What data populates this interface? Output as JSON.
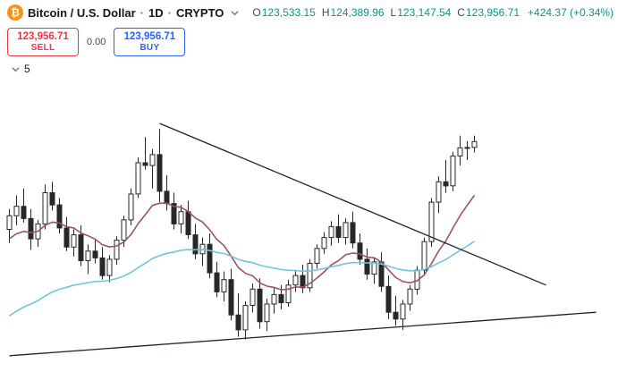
{
  "header": {
    "symbol_title": "Bitcoin / U.S. Dollar",
    "separator": "·",
    "interval": "1D",
    "exchange": "CRYPTO",
    "btc_glyph": "₿",
    "ohlc": {
      "o_label": "O",
      "o": "123,533.15",
      "h_label": "H",
      "h": "124,389.96",
      "l_label": "L",
      "l": "123,147.54",
      "c_label": "C",
      "c": "123,956.71",
      "change": "+424.37 (+0.34%)"
    }
  },
  "trade_panel": {
    "sell": {
      "price": "123,956.71",
      "label": "SELL"
    },
    "spread": "0.00",
    "buy": {
      "price": "123,956.71",
      "label": "BUY"
    }
  },
  "toolbar": {
    "indicator_count": "5"
  },
  "colors": {
    "up_value": "#089981",
    "sell_red": "#f23645",
    "buy_blue": "#2962ff",
    "bitcoin_orange": "#f7931a"
  },
  "chart_data": {
    "type": "candlestick",
    "description": "BTCUSD daily candles inside a descending-triangle pattern with upside breakout at right edge; values in thousands of USD",
    "price_min": 107.0,
    "price_max": 127.8,
    "candle_up_fill": "#ffffff",
    "candle_down_fill": "#26282b",
    "candle_stroke": "#26282b",
    "trendline_color": "#1e222d",
    "candles": [
      [
        117.5,
        119.0,
        116.5,
        118.5
      ],
      [
        118.5,
        120.0,
        117.8,
        119.2
      ],
      [
        119.2,
        120.5,
        118.0,
        118.3
      ],
      [
        118.3,
        119.0,
        116.0,
        116.8
      ],
      [
        116.8,
        118.2,
        116.2,
        117.9
      ],
      [
        117.9,
        120.8,
        117.5,
        120.2
      ],
      [
        120.2,
        121.0,
        118.9,
        119.3
      ],
      [
        119.3,
        119.8,
        117.2,
        117.6
      ],
      [
        117.6,
        118.4,
        115.9,
        116.2
      ],
      [
        116.2,
        117.5,
        115.5,
        117.1
      ],
      [
        117.1,
        117.8,
        114.8,
        115.2
      ],
      [
        115.2,
        116.4,
        114.2,
        115.9
      ],
      [
        115.9,
        116.8,
        115.0,
        115.4
      ],
      [
        115.4,
        116.2,
        113.8,
        114.1
      ],
      [
        114.1,
        115.6,
        113.6,
        115.3
      ],
      [
        115.3,
        117.0,
        114.9,
        116.7
      ],
      [
        116.7,
        118.5,
        116.2,
        118.2
      ],
      [
        118.2,
        120.5,
        117.8,
        120.1
      ],
      [
        120.1,
        122.8,
        119.8,
        122.4
      ],
      [
        122.4,
        124.3,
        121.9,
        122.2
      ],
      [
        122.2,
        123.4,
        120.5,
        123.0
      ],
      [
        123.0,
        124.9,
        119.5,
        120.3
      ],
      [
        120.3,
        121.5,
        118.9,
        119.4
      ],
      [
        119.4,
        120.2,
        117.5,
        117.9
      ],
      [
        117.9,
        119.3,
        117.2,
        118.8
      ],
      [
        118.8,
        119.6,
        116.8,
        117.1
      ],
      [
        117.1,
        117.9,
        115.3,
        115.7
      ],
      [
        115.7,
        116.9,
        114.8,
        116.4
      ],
      [
        116.4,
        117.2,
        113.9,
        114.3
      ],
      [
        114.3,
        115.1,
        112.5,
        112.9
      ],
      [
        112.9,
        114.4,
        112.2,
        113.8
      ],
      [
        113.8,
        114.6,
        110.8,
        111.2
      ],
      [
        111.2,
        112.8,
        109.6,
        110.1
      ],
      [
        110.1,
        112.2,
        109.4,
        111.9
      ],
      [
        111.9,
        113.5,
        111.4,
        113.1
      ],
      [
        113.1,
        113.9,
        110.2,
        110.7
      ],
      [
        110.7,
        112.4,
        110.0,
        112.0
      ],
      [
        112.0,
        113.2,
        111.3,
        112.7
      ],
      [
        112.7,
        113.4,
        111.6,
        112.1
      ],
      [
        112.1,
        113.8,
        111.8,
        113.4
      ],
      [
        113.4,
        114.5,
        112.9,
        114.1
      ],
      [
        114.1,
        114.9,
        112.8,
        113.2
      ],
      [
        113.2,
        115.3,
        112.9,
        115.0
      ],
      [
        115.0,
        116.4,
        114.6,
        116.1
      ],
      [
        116.1,
        117.3,
        115.7,
        116.9
      ],
      [
        116.9,
        118.1,
        116.3,
        117.7
      ],
      [
        117.7,
        118.6,
        116.5,
        116.9
      ],
      [
        116.9,
        118.3,
        116.4,
        118.0
      ],
      [
        118.0,
        118.8,
        116.1,
        116.5
      ],
      [
        116.5,
        117.2,
        114.9,
        115.3
      ],
      [
        115.3,
        116.1,
        113.8,
        114.2
      ],
      [
        114.2,
        115.4,
        113.5,
        115.1
      ],
      [
        115.1,
        115.8,
        112.9,
        113.3
      ],
      [
        113.3,
        114.1,
        110.9,
        111.4
      ],
      [
        111.4,
        112.6,
        110.4,
        110.9
      ],
      [
        110.9,
        112.3,
        110.1,
        112.0
      ],
      [
        112.0,
        113.4,
        111.5,
        113.1
      ],
      [
        113.1,
        114.8,
        112.7,
        114.5
      ],
      [
        114.5,
        116.9,
        114.2,
        116.6
      ],
      [
        116.6,
        119.8,
        116.2,
        119.5
      ],
      [
        119.5,
        121.4,
        118.7,
        121.0
      ],
      [
        121.0,
        122.6,
        120.2,
        120.7
      ],
      [
        120.7,
        123.2,
        120.3,
        122.9
      ],
      [
        122.9,
        124.4,
        122.2,
        123.5
      ],
      [
        123.5,
        124.0,
        122.6,
        123.53
      ],
      [
        123.53,
        124.39,
        123.15,
        123.96
      ]
    ],
    "overlays": [
      {
        "name": "ema-fast",
        "period": 12,
        "init": 116.5,
        "color": "#9c5460"
      },
      {
        "name": "ema-slow",
        "period": 45,
        "init": 110.8,
        "color": "#72c5da"
      }
    ],
    "trendlines": [
      {
        "name": "descending-resistance",
        "i1": 21,
        "p1": 125.3,
        "i2": 75,
        "p2": 113.4
      },
      {
        "name": "ascending-support",
        "i1": 0,
        "p1": 108.2,
        "i2": 82,
        "p2": 111.4
      }
    ]
  }
}
